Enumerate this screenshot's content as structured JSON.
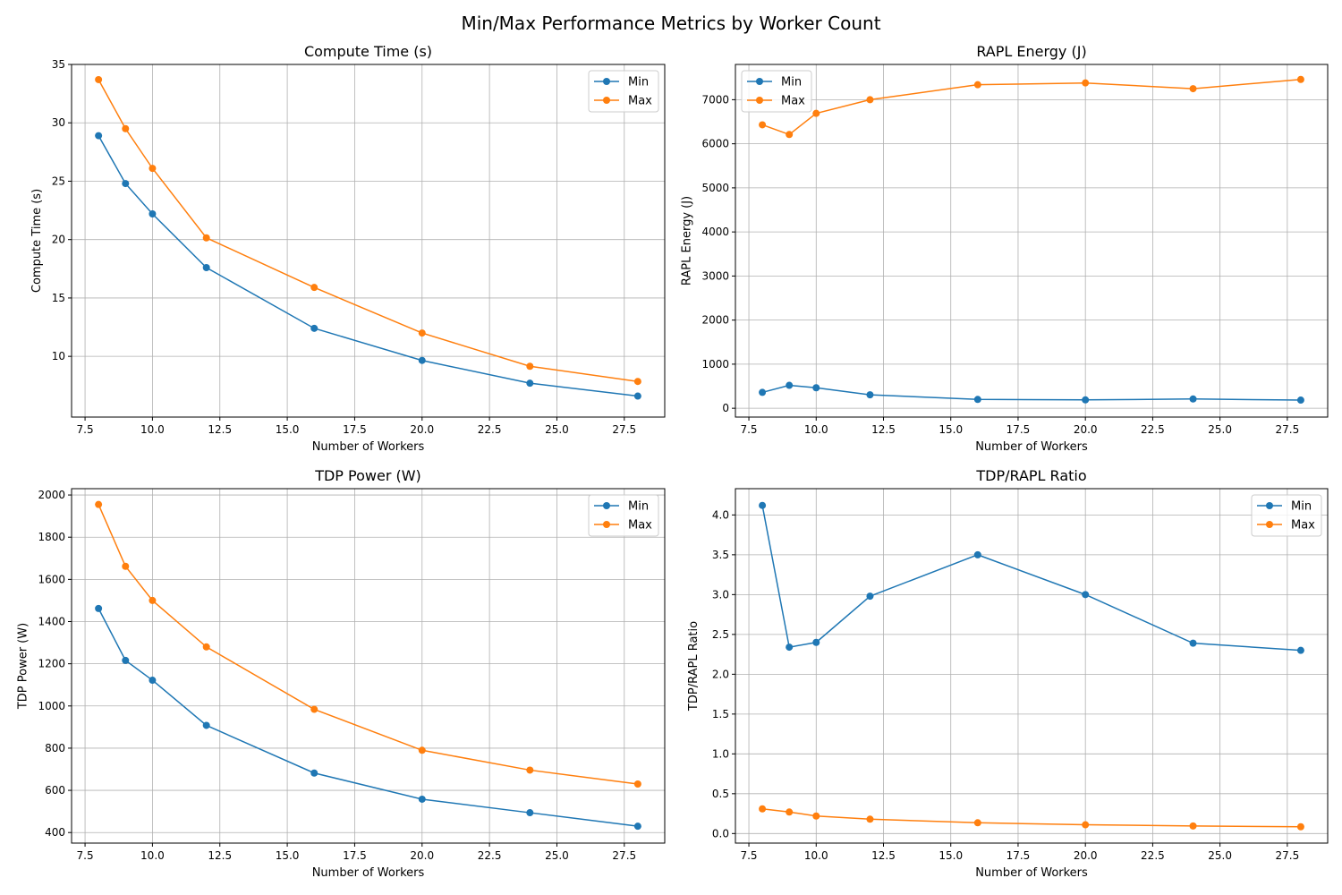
{
  "suptitle": "Min/Max Performance Metrics by Worker Count",
  "colors": {
    "min": "#1f77b4",
    "max": "#ff7f0e"
  },
  "chart_data": [
    {
      "type": "line",
      "title": "Compute Time (s)",
      "xlabel": "Number of Workers",
      "ylabel": "Compute Time (s)",
      "x": [
        8,
        9,
        10,
        12,
        16,
        20,
        24,
        28
      ],
      "xlim": [
        7,
        29
      ],
      "ylim": [
        4.8,
        35
      ],
      "xticks": [
        7.5,
        10.0,
        12.5,
        15.0,
        17.5,
        20.0,
        22.5,
        25.0,
        27.5
      ],
      "xtick_labels": [
        "7.5",
        "10.0",
        "12.5",
        "15.0",
        "17.5",
        "20.0",
        "22.5",
        "25.0",
        "27.5"
      ],
      "yticks": [
        10,
        15,
        20,
        25,
        30,
        35
      ],
      "ytick_labels": [
        "10",
        "15",
        "20",
        "25",
        "30",
        "35"
      ],
      "grid": true,
      "legend": "top-right",
      "series": [
        {
          "name": "Min",
          "values": [
            28.9,
            24.8,
            22.2,
            17.6,
            12.4,
            9.65,
            7.7,
            6.6
          ]
        },
        {
          "name": "Max",
          "values": [
            33.7,
            29.5,
            26.1,
            20.15,
            15.9,
            12.0,
            9.15,
            7.85
          ]
        }
      ]
    },
    {
      "type": "line",
      "title": "RAPL Energy (J)",
      "xlabel": "Number of Workers",
      "ylabel": "RAPL Energy (J)",
      "x": [
        8,
        9,
        10,
        12,
        16,
        20,
        24,
        28
      ],
      "xlim": [
        7,
        29
      ],
      "ylim": [
        -200,
        7800
      ],
      "xticks": [
        7.5,
        10.0,
        12.5,
        15.0,
        17.5,
        20.0,
        22.5,
        25.0,
        27.5
      ],
      "xtick_labels": [
        "7.5",
        "10.0",
        "12.5",
        "15.0",
        "17.5",
        "20.0",
        "22.5",
        "25.0",
        "27.5"
      ],
      "yticks": [
        0,
        1000,
        2000,
        3000,
        4000,
        5000,
        6000,
        7000
      ],
      "ytick_labels": [
        "0",
        "1000",
        "2000",
        "3000",
        "4000",
        "5000",
        "6000",
        "7000"
      ],
      "grid": true,
      "legend": "top-left",
      "series": [
        {
          "name": "Min",
          "values": [
            360,
            520,
            465,
            305,
            200,
            190,
            210,
            185
          ]
        },
        {
          "name": "Max",
          "values": [
            6430,
            6210,
            6690,
            7000,
            7340,
            7380,
            7250,
            7460
          ]
        }
      ]
    },
    {
      "type": "line",
      "title": "TDP Power (W)",
      "xlabel": "Number of Workers",
      "ylabel": "TDP Power (W)",
      "x": [
        8,
        9,
        10,
        12,
        16,
        20,
        24,
        28
      ],
      "xlim": [
        7,
        29
      ],
      "ylim": [
        350,
        2030
      ],
      "xticks": [
        7.5,
        10.0,
        12.5,
        15.0,
        17.5,
        20.0,
        22.5,
        25.0,
        27.5
      ],
      "xtick_labels": [
        "7.5",
        "10.0",
        "12.5",
        "15.0",
        "17.5",
        "20.0",
        "22.5",
        "25.0",
        "27.5"
      ],
      "yticks": [
        400,
        600,
        800,
        1000,
        1200,
        1400,
        1600,
        1800,
        2000
      ],
      "ytick_labels": [
        "400",
        "600",
        "800",
        "1000",
        "1200",
        "1400",
        "1600",
        "1800",
        "2000"
      ],
      "grid": true,
      "legend": "top-right",
      "series": [
        {
          "name": "Min",
          "values": [
            1462,
            1216,
            1122,
            908,
            682,
            558,
            494,
            430
          ]
        },
        {
          "name": "Max",
          "values": [
            1955,
            1662,
            1500,
            1280,
            984,
            790,
            696,
            630
          ]
        }
      ]
    },
    {
      "type": "line",
      "title": "TDP/RAPL Ratio",
      "xlabel": "Number of Workers",
      "ylabel": "TDP/RAPL Ratio",
      "x": [
        8,
        9,
        10,
        12,
        16,
        20,
        24,
        28
      ],
      "xlim": [
        7,
        29
      ],
      "ylim": [
        -0.12,
        4.33
      ],
      "xticks": [
        7.5,
        10.0,
        12.5,
        15.0,
        17.5,
        20.0,
        22.5,
        25.0,
        27.5
      ],
      "xtick_labels": [
        "7.5",
        "10.0",
        "12.5",
        "15.0",
        "17.5",
        "20.0",
        "22.5",
        "25.0",
        "27.5"
      ],
      "yticks": [
        0.0,
        0.5,
        1.0,
        1.5,
        2.0,
        2.5,
        3.0,
        3.5,
        4.0
      ],
      "ytick_labels": [
        "0.0",
        "0.5",
        "1.0",
        "1.5",
        "2.0",
        "2.5",
        "3.0",
        "3.5",
        "4.0"
      ],
      "grid": true,
      "legend": "top-right",
      "series": [
        {
          "name": "Min",
          "values": [
            4.12,
            2.34,
            2.4,
            2.98,
            3.5,
            3.0,
            2.39,
            2.3
          ]
        },
        {
          "name": "Max",
          "values": [
            0.31,
            0.27,
            0.22,
            0.18,
            0.135,
            0.11,
            0.095,
            0.085
          ]
        }
      ]
    }
  ]
}
